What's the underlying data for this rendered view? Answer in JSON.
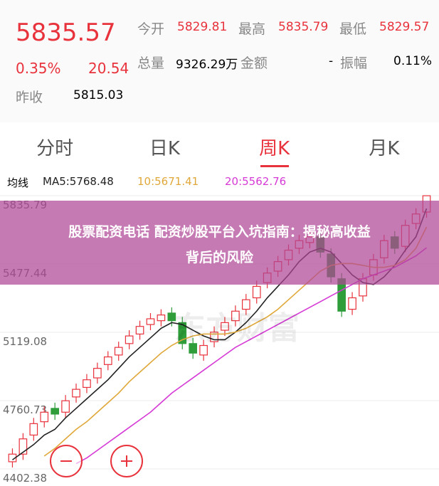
{
  "header": {
    "price": "5835.57",
    "change_pct": "0.35%",
    "change": "20.54",
    "prev_close_label": "昨收",
    "prev_close": "5815.03",
    "stats": [
      [
        "今开",
        "5829.81"
      ],
      [
        "最高",
        "5835.79"
      ],
      [
        "最低",
        "5829.57"
      ]
    ],
    "volume_label": "总量",
    "volume": "9326.29万",
    "amount_label": "金额",
    "amount": "-",
    "amplitude_label": "振幅",
    "amplitude": "0.11%"
  },
  "tabs": [
    "分时",
    "日K",
    "周K",
    "月K"
  ],
  "active_tab": 2,
  "banner": [
    "股票配资电话 配资炒股平台入坑指南：揭秘高收益",
    "背后的风险"
  ],
  "watermark": "东方财富",
  "chart_data": {
    "type": "candlestick",
    "legend_title": "均线",
    "legend": [
      "MA5:5768.48",
      "10:5671.41",
      "20:5562.76"
    ],
    "up_color": "#e8323c",
    "down_color": "#2e9d3a",
    "open": [
      4440,
      4480,
      4580,
      4650,
      4720,
      4700,
      4780,
      4830,
      4880,
      4950,
      5000,
      5060,
      5110,
      5160,
      5180,
      5220,
      5170,
      5060,
      5000,
      5070,
      5130,
      5180,
      5240,
      5300,
      5380,
      5440,
      5500,
      5560,
      5590,
      5620,
      5530,
      5400,
      5240,
      5310,
      5420,
      5510,
      5620,
      5570,
      5690,
      5750
    ],
    "high": [
      4510,
      4590,
      4670,
      4730,
      4750,
      4790,
      4850,
      4900,
      4960,
      5020,
      5070,
      5130,
      5180,
      5220,
      5240,
      5250,
      5200,
      5090,
      5080,
      5150,
      5200,
      5260,
      5320,
      5390,
      5460,
      5520,
      5580,
      5630,
      5650,
      5650,
      5560,
      5430,
      5330,
      5430,
      5530,
      5630,
      5650,
      5710,
      5770,
      5835.79
    ],
    "low": [
      4410,
      4450,
      4550,
      4620,
      4660,
      4670,
      4750,
      4800,
      4850,
      4920,
      4970,
      5030,
      5080,
      5130,
      5150,
      5150,
      5030,
      4980,
      4970,
      5040,
      5100,
      5150,
      5210,
      5270,
      5350,
      5410,
      5470,
      5530,
      5560,
      5510,
      5380,
      5200,
      5210,
      5280,
      5390,
      5480,
      5530,
      5540,
      5660,
      5720
    ],
    "close": [
      4480,
      4560,
      4640,
      4700,
      4690,
      4760,
      4820,
      4870,
      4930,
      4990,
      5040,
      5100,
      5150,
      5190,
      5210,
      5180,
      5060,
      5010,
      5050,
      5120,
      5170,
      5230,
      5290,
      5360,
      5430,
      5490,
      5550,
      5600,
      5620,
      5540,
      5410,
      5230,
      5300,
      5400,
      5500,
      5600,
      5560,
      5680,
      5740,
      5835.57
    ],
    "series": [
      {
        "color": "#222222",
        "values": [
          4450,
          4490,
          4530,
          4580,
          4610,
          4670,
          4720,
          4770,
          4820,
          4870,
          4930,
          4990,
          5040,
          5090,
          5140,
          5170,
          5160,
          5130,
          5100,
          5080,
          5080,
          5120,
          5170,
          5230,
          5300,
          5360,
          5420,
          5490,
          5540,
          5560,
          5540,
          5480,
          5420,
          5380,
          5370,
          5410,
          5470,
          5550,
          5620,
          5768.48
        ]
      },
      {
        "color": "#e0a83a",
        "values": [
          null,
          null,
          null,
          4470,
          4510,
          4560,
          4610,
          4650,
          4700,
          4750,
          4800,
          4860,
          4910,
          4960,
          5010,
          5050,
          5080,
          5100,
          5110,
          5110,
          5110,
          5120,
          5140,
          5170,
          5200,
          5240,
          5290,
          5340,
          5390,
          5440,
          5470,
          5480,
          5480,
          5470,
          5460,
          5460,
          5470,
          5500,
          5560,
          5671.41
        ]
      },
      {
        "color": "#d63ad6",
        "values": [
          null,
          null,
          null,
          null,
          null,
          null,
          4430,
          4460,
          4500,
          4540,
          4580,
          4620,
          4660,
          4700,
          4750,
          4800,
          4840,
          4880,
          4920,
          4960,
          5000,
          5040,
          5070,
          5100,
          5130,
          5160,
          5190,
          5220,
          5250,
          5280,
          5310,
          5340,
          5370,
          5400,
          5420,
          5440,
          5460,
          5490,
          5520,
          5562.76
        ]
      }
    ],
    "ylim": [
      4402.38,
      5835.79
    ],
    "yticks": [
      5835.79,
      5477.44,
      5119.08,
      4760.73,
      4402.38
    ]
  }
}
